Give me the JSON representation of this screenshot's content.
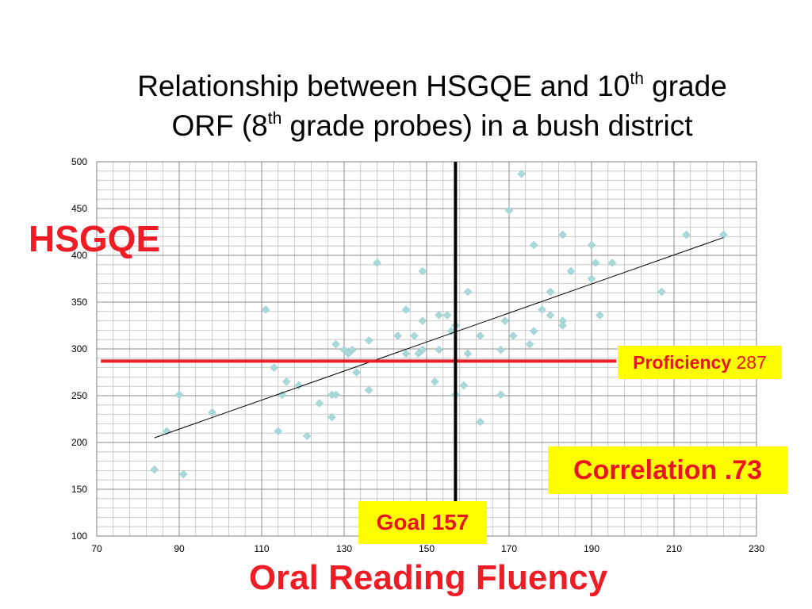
{
  "title": {
    "line1_pre": "Relationship between HSGQE and 10",
    "line1_sup": "th",
    "line1_post": " grade",
    "line2_pre": "ORF (8",
    "line2_sup": "th",
    "line2_post": " grade probes) in a bush district"
  },
  "labels": {
    "y_axis": "HSGQE",
    "x_axis": "Oral Reading Fluency",
    "proficiency_label": "Proficiency",
    "proficiency_value": "287",
    "correlation": "Correlation .73",
    "goal": "Goal 157"
  },
  "colors": {
    "marker": "#a8d8d8",
    "reference_red": "#ee1c24",
    "callout_bg": "#ffff00",
    "callout_text": "#e8141e",
    "grid": "#bfbfbf"
  },
  "chart_data": {
    "type": "scatter",
    "xlim": [
      70,
      230
    ],
    "ylim": [
      100,
      500
    ],
    "x_ticks": [
      70,
      90,
      110,
      130,
      150,
      170,
      190,
      210,
      230
    ],
    "y_ticks": [
      100,
      150,
      200,
      250,
      300,
      350,
      400,
      450,
      500
    ],
    "x_minor_step": 4,
    "y_minor_step": 10,
    "grid": true,
    "vertical_reference": {
      "x": 157,
      "label": "Goal 157"
    },
    "horizontal_reference": {
      "y": 287,
      "label": "Proficiency 287",
      "x_range": [
        71,
        196
      ]
    },
    "trendline": {
      "from": [
        84,
        205
      ],
      "to": [
        222,
        419
      ]
    },
    "correlation": 0.73,
    "points": [
      [
        84,
        171
      ],
      [
        87,
        212
      ],
      [
        90,
        251
      ],
      [
        91,
        166
      ],
      [
        98,
        232
      ],
      [
        111,
        342
      ],
      [
        113,
        280
      ],
      [
        114,
        212
      ],
      [
        115,
        251
      ],
      [
        116,
        265
      ],
      [
        119,
        261
      ],
      [
        121,
        207
      ],
      [
        124,
        242
      ],
      [
        127,
        227
      ],
      [
        127,
        251
      ],
      [
        128,
        251
      ],
      [
        128,
        305
      ],
      [
        130,
        299
      ],
      [
        131,
        295
      ],
      [
        132,
        299
      ],
      [
        133,
        275
      ],
      [
        136,
        309
      ],
      [
        136,
        256
      ],
      [
        138,
        392
      ],
      [
        143,
        314
      ],
      [
        145,
        342
      ],
      [
        145,
        295
      ],
      [
        147,
        314
      ],
      [
        148,
        295
      ],
      [
        149,
        299
      ],
      [
        149,
        330
      ],
      [
        149,
        383
      ],
      [
        152,
        265
      ],
      [
        153,
        299
      ],
      [
        153,
        336
      ],
      [
        155,
        336
      ],
      [
        156,
        319
      ],
      [
        157,
        325
      ],
      [
        157,
        251
      ],
      [
        159,
        261
      ],
      [
        160,
        295
      ],
      [
        160,
        361
      ],
      [
        163,
        314
      ],
      [
        163,
        222
      ],
      [
        168,
        299
      ],
      [
        168,
        251
      ],
      [
        169,
        330
      ],
      [
        170,
        448
      ],
      [
        171,
        314
      ],
      [
        173,
        487
      ],
      [
        175,
        305
      ],
      [
        176,
        319
      ],
      [
        176,
        411
      ],
      [
        178,
        342
      ],
      [
        180,
        336
      ],
      [
        180,
        361
      ],
      [
        183,
        422
      ],
      [
        183,
        330
      ],
      [
        183,
        325
      ],
      [
        185,
        383
      ],
      [
        190,
        411
      ],
      [
        190,
        375
      ],
      [
        191,
        392
      ],
      [
        192,
        336
      ],
      [
        195,
        392
      ],
      [
        207,
        361
      ],
      [
        213,
        422
      ],
      [
        222,
        422
      ]
    ]
  }
}
